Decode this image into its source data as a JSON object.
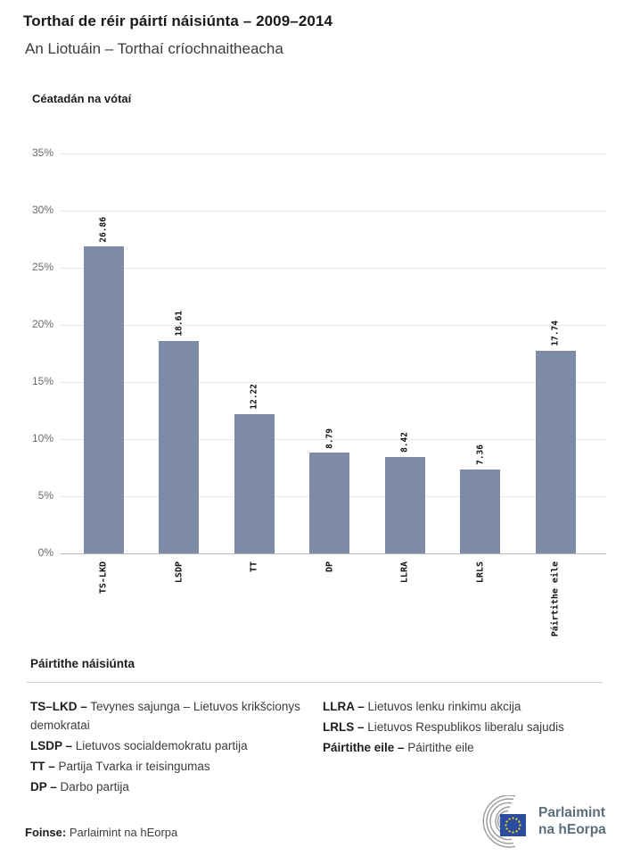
{
  "header": {
    "title": "Torthaí de réir páirtí náisiúnta – 2009–2014",
    "subtitle": "An Liotuáin – Torthaí críochnaitheacha"
  },
  "chart_data": {
    "type": "bar",
    "title": "Céatadán na vótaí",
    "categories": [
      "TS-LKD",
      "LSDP",
      "TT",
      "DP",
      "LLRA",
      "LRLS",
      "Páirtithe eile"
    ],
    "values": [
      26.86,
      18.61,
      12.22,
      8.79,
      8.42,
      7.36,
      17.74
    ],
    "value_labels": [
      "26.86",
      "18.61",
      "12.22",
      "8.79",
      "8.42",
      "7.36",
      "17.74"
    ],
    "ylabel": "Céatadán na vótaí",
    "xlabel": "",
    "ylim": [
      0,
      35
    ],
    "ytick_step": 5,
    "yticks": [
      "0%",
      "5%",
      "10%",
      "15%",
      "20%",
      "25%",
      "30%",
      "35%"
    ],
    "grid": true,
    "legend_position": "none",
    "bar_color": "#7E8BA6"
  },
  "legend": {
    "heading": "Páirtithe náisiúnta",
    "columns": [
      [
        {
          "abbr": "TS–LKD –",
          "name": "Tevynes sajunga – Lietuvos krikšcionys demokratai"
        },
        {
          "abbr": "LSDP –",
          "name": "Lietuvos socialdemokratu partija"
        },
        {
          "abbr": "TT –",
          "name": "Partija Tvarka ir teisingumas"
        },
        {
          "abbr": "DP –",
          "name": "Darbo partija"
        }
      ],
      [
        {
          "abbr": "LLRA –",
          "name": "Lietuvos lenku rinkimu akcija"
        },
        {
          "abbr": "LRLS –",
          "name": "Lietuvos Respublikos liberalu sajudis"
        },
        {
          "abbr": "Páirtithe eile –",
          "name": "Páirtithe eile"
        }
      ]
    ]
  },
  "footer": {
    "source_label": "Foinse:",
    "source_value": "Parlaimint na hEorpa",
    "logo_icon": "ep-hemicycle-logo",
    "logo_flag_icon": "eu-flag-icon",
    "logo_text_line1": "Parlaimint",
    "logo_text_line2": "na hEorpa"
  },
  "colors": {
    "bar": "#7E8BA6",
    "gridline": "#e8e8e8",
    "axis_baseline": "#b9b9b9",
    "tick_text": "#6b6b6b",
    "title_text": "#1a1a18",
    "body_text": "#3d3d3c",
    "logo_text": "#5d6e7b",
    "eu_flag_blue": "#2A4DA0",
    "eu_star_yellow": "#FFD617",
    "hemicycle_gray": "#9b9b9b"
  }
}
